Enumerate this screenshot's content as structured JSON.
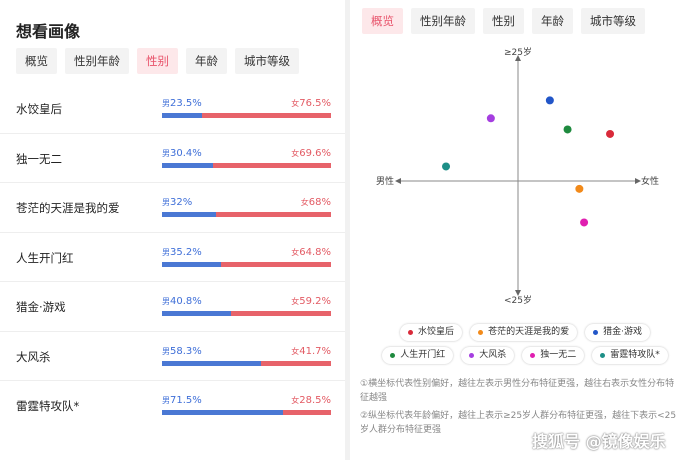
{
  "left": {
    "title": "想看画像",
    "tabs": [
      "概览",
      "性别年龄",
      "性别",
      "年龄",
      "城市等级"
    ],
    "active_tab": 2,
    "rows": [
      {
        "name": "水饺皇后",
        "male": 23.5,
        "female": 76.5,
        "male_label": "23.5%",
        "female_label": "76.5%"
      },
      {
        "name": "独一无二",
        "male": 30.4,
        "female": 69.6,
        "male_label": "30.4%",
        "female_label": "69.6%"
      },
      {
        "name": "苍茫的天涯是我的爱",
        "male": 32,
        "female": 68,
        "male_label": "32%",
        "female_label": "68%"
      },
      {
        "name": "人生开门红",
        "male": 35.2,
        "female": 64.8,
        "male_label": "35.2%",
        "female_label": "64.8%"
      },
      {
        "name": "猎金·游戏",
        "male": 40.8,
        "female": 59.2,
        "male_label": "40.8%",
        "female_label": "59.2%"
      },
      {
        "name": "大风杀",
        "male": 58.3,
        "female": 41.7,
        "male_label": "58.3%",
        "female_label": "41.7%"
      },
      {
        "name": "雷霆特攻队*",
        "male": 71.5,
        "female": 28.5,
        "male_label": "71.5%",
        "female_label": "28.5%"
      }
    ],
    "male_prefix": "男",
    "female_prefix": "女",
    "colors": {
      "male": "#4a78d4",
      "female": "#e7636a",
      "active_tab_bg": "#fde8ea",
      "active_tab_text": "#e8526a"
    }
  },
  "right": {
    "tabs": [
      "概览",
      "性别年龄",
      "性别",
      "年龄",
      "城市等级"
    ],
    "active_tab": 0,
    "axes": {
      "top": "≥25岁",
      "bottom": "<25岁",
      "left": "男性",
      "right": "女性"
    },
    "points": [
      {
        "name": "水饺皇后",
        "x": 0.78,
        "y": 0.42,
        "color": "#d92a3a"
      },
      {
        "name": "苍茫的天涯是我的爱",
        "x": 0.52,
        "y": -0.07,
        "color": "#f28a1a"
      },
      {
        "name": "猎金·游戏",
        "x": 0.27,
        "y": 0.72,
        "color": "#2256c8"
      },
      {
        "name": "人生开门红",
        "x": 0.42,
        "y": 0.46,
        "color": "#1e8a3e"
      },
      {
        "name": "大风杀",
        "x": -0.23,
        "y": 0.56,
        "color": "#a53ee0"
      },
      {
        "name": "独一无二",
        "x": 0.56,
        "y": -0.37,
        "color": "#e01fb0"
      },
      {
        "name": "雷霆特攻队*",
        "x": -0.61,
        "y": 0.13,
        "color": "#1d8f87"
      }
    ],
    "legend_rows": [
      [
        0,
        1,
        2
      ],
      [
        3,
        4,
        5,
        6
      ]
    ],
    "notes": [
      "①横坐标代表性别偏好，越往左表示男性分布特征更强，越往右表示女性分布特征越强",
      "②纵坐标代表年龄偏好，越往上表示≥25岁人群分布特征更强，越往下表示<25岁人群分布特征更强"
    ]
  },
  "watermark": "搜狐号 @镜像娱乐"
}
